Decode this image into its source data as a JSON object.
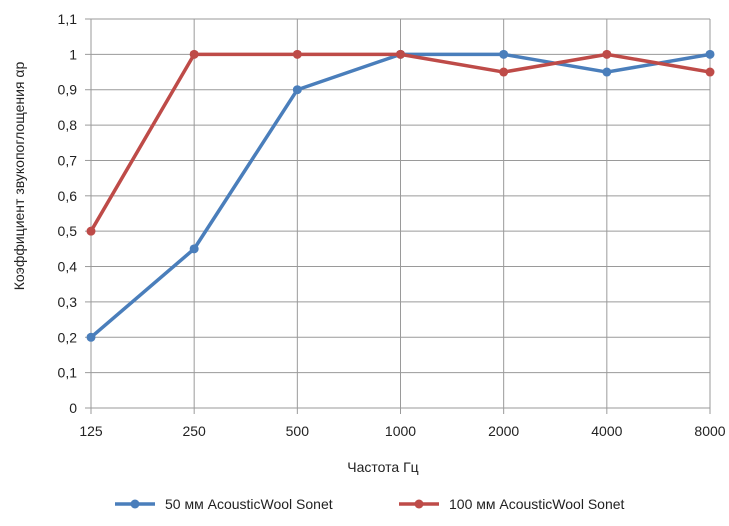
{
  "chart_data": {
    "type": "line",
    "categories": [
      "125",
      "250",
      "500",
      "1000",
      "2000",
      "4000",
      "8000"
    ],
    "ylabel": "Коэффициент звукопоглощения αp",
    "xlabel": "Частота Гц",
    "ylim": [
      0,
      1.1
    ],
    "yticks": [
      "0",
      "0,1",
      "0,2",
      "0,3",
      "0,4",
      "0,5",
      "0,6",
      "0,7",
      "0,8",
      "0,9",
      "1",
      "1,1"
    ],
    "grid": true,
    "legend_position": "bottom",
    "series": [
      {
        "name": "50 мм AcousticWool Sonet",
        "color": "#4a7ebb",
        "values": [
          0.2,
          0.45,
          0.9,
          1.0,
          1.0,
          0.95,
          1.0
        ]
      },
      {
        "name": "100 мм AcousticWool Sonet",
        "color": "#be4b48",
        "values": [
          0.5,
          1.0,
          1.0,
          1.0,
          0.95,
          1.0,
          0.95
        ]
      }
    ]
  }
}
